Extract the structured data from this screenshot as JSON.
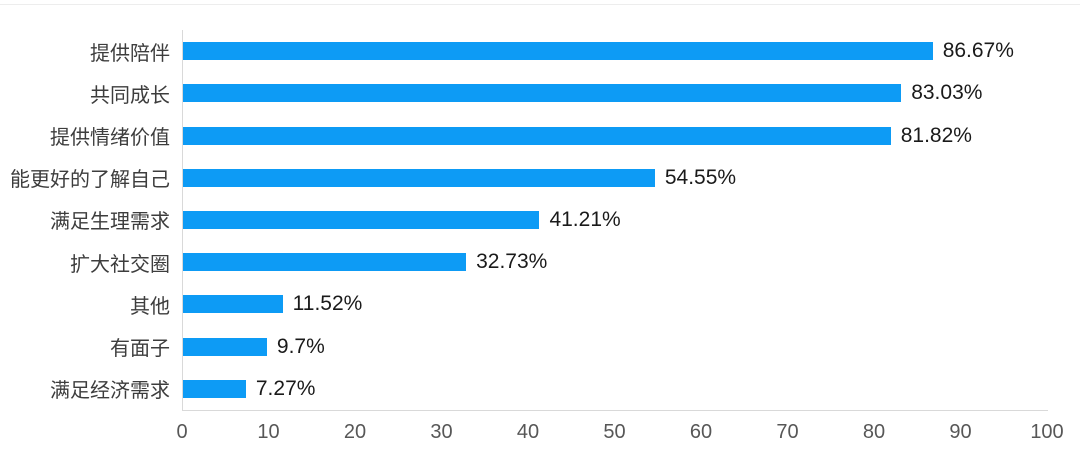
{
  "chart_data": {
    "type": "bar",
    "orientation": "horizontal",
    "title": "",
    "xlabel": "",
    "ylabel": "",
    "categories": [
      "提供陪伴",
      "共同成长",
      "提供情绪价值",
      "能更好的了解自己",
      "满足生理需求",
      "扩大社交圈",
      "其他",
      "有面子",
      "满足经济需求"
    ],
    "values": [
      86.67,
      83.03,
      81.82,
      54.55,
      41.21,
      32.73,
      11.52,
      9.7,
      7.27
    ],
    "value_labels": [
      "86.67%",
      "83.03%",
      "81.82%",
      "54.55%",
      "41.21%",
      "32.73%",
      "11.52%",
      "9.7%",
      "7.27%"
    ],
    "xlim": [
      0,
      100
    ],
    "x_ticks": [
      0,
      10,
      20,
      30,
      40,
      50,
      60,
      70,
      80,
      90,
      100
    ],
    "grid": false,
    "legend": false,
    "colors": {
      "bar": "#0d9bf5",
      "axis_line": "#d9d9d9",
      "category_label": "#3d3d3d",
      "value_label": "#1a1a1a",
      "tick_label": "#575757",
      "background": "#ffffff"
    }
  }
}
